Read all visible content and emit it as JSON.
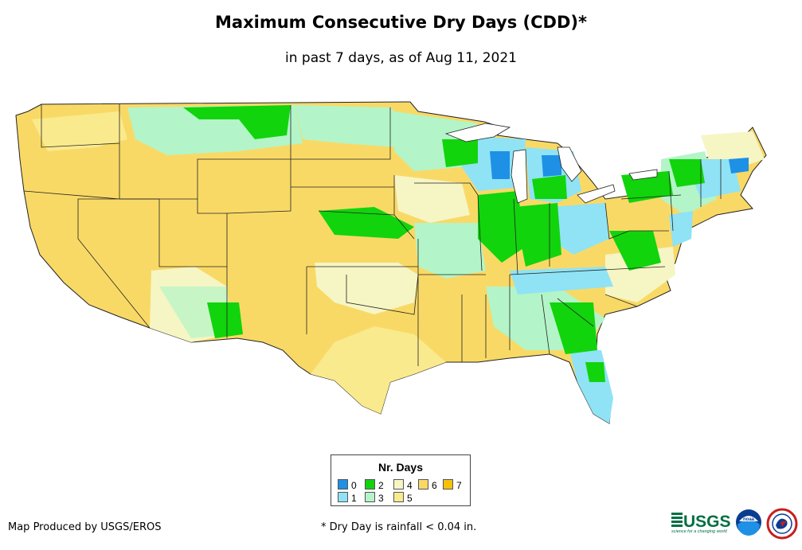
{
  "title": "Maximum Consecutive Dry Days (CDD)*",
  "subtitle": "in past 7 days, as of Aug 11, 2021",
  "legend": {
    "title": "Nr. Days",
    "items": [
      {
        "label": "0",
        "color": "#1e90e6"
      },
      {
        "label": "1",
        "color": "#8fe3f5"
      },
      {
        "label": "2",
        "color": "#11d40c"
      },
      {
        "label": "3",
        "color": "#b3f5c8"
      },
      {
        "label": "4",
        "color": "#f6f5c4"
      },
      {
        "label": "5",
        "color": "#faea8e"
      },
      {
        "label": "6",
        "color": "#f9d966"
      },
      {
        "label": "7",
        "color": "#f4c20d"
      }
    ]
  },
  "footer": {
    "producer": "Map Produced by USGS/EROS",
    "footnote": "* Dry Day is rainfall < 0.04 in."
  },
  "logos": {
    "usgs_text": "USGS",
    "usgs_tagline": "science for a changing world",
    "noaa_text": "noaa"
  },
  "map": {
    "region": "Contiguous United States",
    "state_outline_color": "#222222",
    "background_color": "#ffffff"
  }
}
